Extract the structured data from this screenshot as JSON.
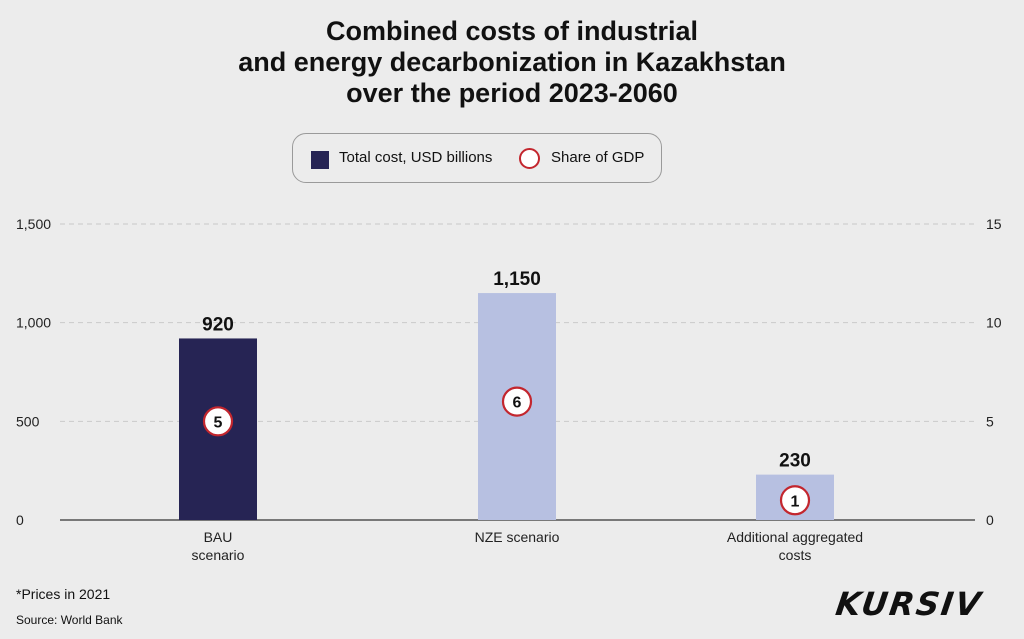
{
  "chart_data": {
    "type": "bar",
    "title_lines": [
      "Combined costs of industrial",
      "and energy decarbonization in Kazakhstan",
      "over the period 2023-2060"
    ],
    "categories": [
      [
        "BAU",
        "scenario"
      ],
      [
        "NZE scenario"
      ],
      [
        "Additional aggregated",
        "costs"
      ]
    ],
    "series": [
      {
        "name": "Total cost, USD billions",
        "values": [
          920,
          1150,
          230
        ],
        "value_labels": [
          "920",
          "1,150",
          "230"
        ],
        "colors": [
          "#262454",
          "#b7c0e1",
          "#b7c0e1"
        ],
        "axis": "left"
      },
      {
        "name": "Share of GDP",
        "values": [
          5,
          6,
          1
        ],
        "axis": "right",
        "marker_color": "#c3262e"
      }
    ],
    "left_axis": {
      "ylim": [
        0,
        1500
      ],
      "ticks": [
        0,
        500,
        1000,
        1500
      ],
      "tick_labels": [
        "0",
        "500",
        "1,000",
        "1,500"
      ]
    },
    "right_axis": {
      "ylim": [
        0,
        15
      ],
      "ticks": [
        0,
        5,
        10,
        15
      ],
      "tick_labels": [
        "0",
        "5",
        "10",
        "15"
      ]
    },
    "grid": "dashed horizontal",
    "legend_position": "top-center"
  },
  "legend": {
    "total_cost_label": "Total cost, USD billions",
    "share_gdp_label": "Share of GDP"
  },
  "footnote": "*Prices in 2021",
  "source": "Source: World Bank",
  "logo_text": "KURSIV"
}
